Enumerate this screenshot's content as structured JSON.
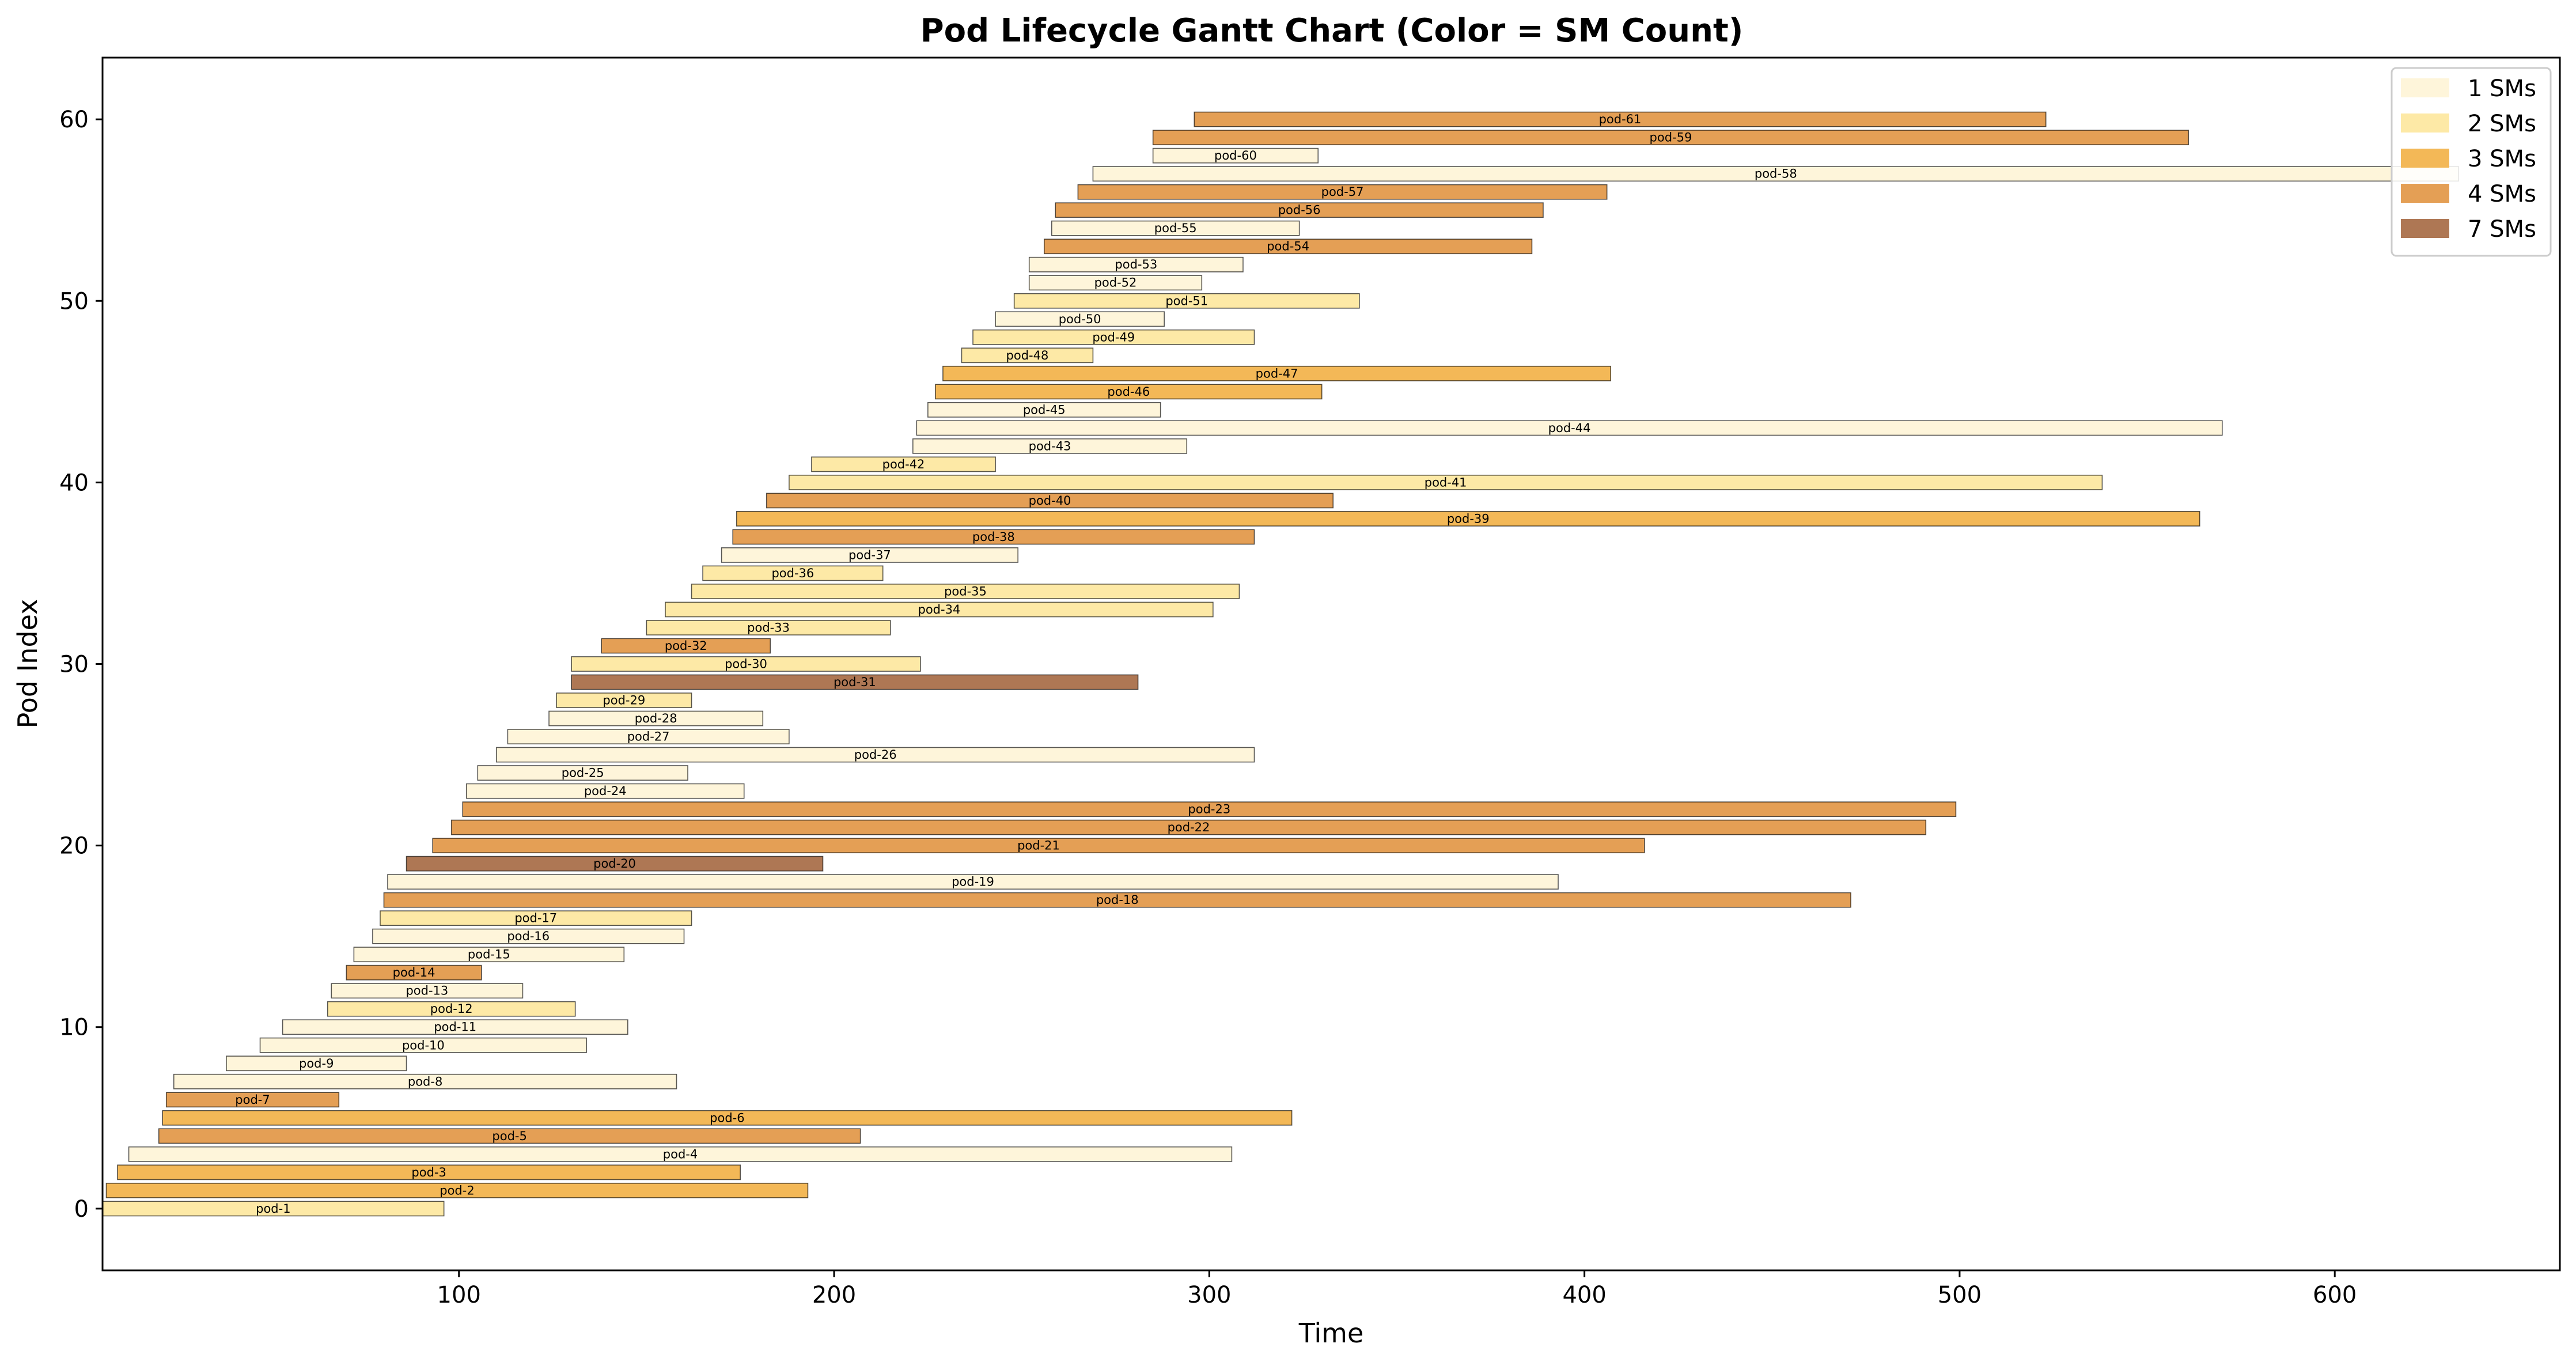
{
  "chart_data": {
    "type": "gantt",
    "title": "Pod Lifecycle Gantt Chart (Color = SM Count)",
    "xlabel": "Time",
    "ylabel": "Pod Index",
    "xlim": [
      5,
      660
    ],
    "ylim": [
      -3.4,
      63.4
    ],
    "xticks": [
      100,
      200,
      300,
      400,
      500,
      600
    ],
    "yticks": [
      0,
      10,
      20,
      30,
      40,
      50,
      60
    ],
    "grid": false,
    "legend_position": "top-right",
    "legend": [
      {
        "label": "1 SMs",
        "sm": 1,
        "color": "#fef5da"
      },
      {
        "label": "2 SMs",
        "sm": 2,
        "color": "#fde9a6"
      },
      {
        "label": "3 SMs",
        "sm": 3,
        "color": "#f3b857"
      },
      {
        "label": "4 SMs",
        "sm": 4,
        "color": "#e49f55"
      },
      {
        "label": "7 SMs",
        "sm": 7,
        "color": "#ae7754"
      }
    ],
    "pods": [
      {
        "name": "pod-1",
        "index": 0,
        "start": 5,
        "end": 96,
        "sm": 2
      },
      {
        "name": "pod-2",
        "index": 1,
        "start": 6,
        "end": 193,
        "sm": 3
      },
      {
        "name": "pod-3",
        "index": 2,
        "start": 9,
        "end": 175,
        "sm": 3
      },
      {
        "name": "pod-4",
        "index": 3,
        "start": 12,
        "end": 306,
        "sm": 1
      },
      {
        "name": "pod-5",
        "index": 4,
        "start": 20,
        "end": 207,
        "sm": 4
      },
      {
        "name": "pod-6",
        "index": 5,
        "start": 21,
        "end": 322,
        "sm": 3
      },
      {
        "name": "pod-7",
        "index": 6,
        "start": 22,
        "end": 68,
        "sm": 4
      },
      {
        "name": "pod-8",
        "index": 7,
        "start": 24,
        "end": 158,
        "sm": 1
      },
      {
        "name": "pod-9",
        "index": 8,
        "start": 38,
        "end": 86,
        "sm": 1
      },
      {
        "name": "pod-10",
        "index": 9,
        "start": 47,
        "end": 134,
        "sm": 1
      },
      {
        "name": "pod-11",
        "index": 10,
        "start": 53,
        "end": 145,
        "sm": 1
      },
      {
        "name": "pod-12",
        "index": 11,
        "start": 65,
        "end": 131,
        "sm": 2
      },
      {
        "name": "pod-13",
        "index": 12,
        "start": 66,
        "end": 117,
        "sm": 1
      },
      {
        "name": "pod-14",
        "index": 13,
        "start": 70,
        "end": 106,
        "sm": 4
      },
      {
        "name": "pod-15",
        "index": 14,
        "start": 72,
        "end": 144,
        "sm": 1
      },
      {
        "name": "pod-16",
        "index": 15,
        "start": 77,
        "end": 160,
        "sm": 1
      },
      {
        "name": "pod-17",
        "index": 16,
        "start": 79,
        "end": 162,
        "sm": 2
      },
      {
        "name": "pod-18",
        "index": 17,
        "start": 80,
        "end": 471,
        "sm": 4
      },
      {
        "name": "pod-19",
        "index": 18,
        "start": 81,
        "end": 393,
        "sm": 1
      },
      {
        "name": "pod-20",
        "index": 19,
        "start": 86,
        "end": 197,
        "sm": 7
      },
      {
        "name": "pod-21",
        "index": 20,
        "start": 93,
        "end": 416,
        "sm": 4
      },
      {
        "name": "pod-22",
        "index": 21,
        "start": 98,
        "end": 491,
        "sm": 4
      },
      {
        "name": "pod-23",
        "index": 22,
        "start": 101,
        "end": 499,
        "sm": 4
      },
      {
        "name": "pod-24",
        "index": 23,
        "start": 102,
        "end": 176,
        "sm": 1
      },
      {
        "name": "pod-25",
        "index": 24,
        "start": 105,
        "end": 161,
        "sm": 1
      },
      {
        "name": "pod-26",
        "index": 25,
        "start": 110,
        "end": 312,
        "sm": 1
      },
      {
        "name": "pod-27",
        "index": 26,
        "start": 113,
        "end": 188,
        "sm": 1
      },
      {
        "name": "pod-28",
        "index": 27,
        "start": 124,
        "end": 181,
        "sm": 1
      },
      {
        "name": "pod-29",
        "index": 28,
        "start": 126,
        "end": 162,
        "sm": 2
      },
      {
        "name": "pod-31",
        "index": 29,
        "start": 130,
        "end": 281,
        "sm": 7
      },
      {
        "name": "pod-30",
        "index": 30,
        "start": 130,
        "end": 223,
        "sm": 2
      },
      {
        "name": "pod-32",
        "index": 31,
        "start": 138,
        "end": 183,
        "sm": 4
      },
      {
        "name": "pod-33",
        "index": 32,
        "start": 150,
        "end": 215,
        "sm": 2
      },
      {
        "name": "pod-34",
        "index": 33,
        "start": 155,
        "end": 301,
        "sm": 2
      },
      {
        "name": "pod-35",
        "index": 34,
        "start": 162,
        "end": 308,
        "sm": 2
      },
      {
        "name": "pod-36",
        "index": 35,
        "start": 165,
        "end": 213,
        "sm": 2
      },
      {
        "name": "pod-37",
        "index": 36,
        "start": 170,
        "end": 249,
        "sm": 1
      },
      {
        "name": "pod-38",
        "index": 37,
        "start": 173,
        "end": 312,
        "sm": 4
      },
      {
        "name": "pod-39",
        "index": 38,
        "start": 174,
        "end": 564,
        "sm": 3
      },
      {
        "name": "pod-40",
        "index": 39,
        "start": 182,
        "end": 333,
        "sm": 4
      },
      {
        "name": "pod-41",
        "index": 40,
        "start": 188,
        "end": 538,
        "sm": 2
      },
      {
        "name": "pod-42",
        "index": 41,
        "start": 194,
        "end": 243,
        "sm": 2
      },
      {
        "name": "pod-43",
        "index": 42,
        "start": 221,
        "end": 294,
        "sm": 1
      },
      {
        "name": "pod-44",
        "index": 43,
        "start": 222,
        "end": 570,
        "sm": 1
      },
      {
        "name": "pod-45",
        "index": 44,
        "start": 225,
        "end": 287,
        "sm": 1
      },
      {
        "name": "pod-46",
        "index": 45,
        "start": 227,
        "end": 330,
        "sm": 3
      },
      {
        "name": "pod-47",
        "index": 46,
        "start": 229,
        "end": 407,
        "sm": 3
      },
      {
        "name": "pod-48",
        "index": 47,
        "start": 234,
        "end": 269,
        "sm": 2
      },
      {
        "name": "pod-49",
        "index": 48,
        "start": 237,
        "end": 312,
        "sm": 2
      },
      {
        "name": "pod-50",
        "index": 49,
        "start": 243,
        "end": 288,
        "sm": 1
      },
      {
        "name": "pod-51",
        "index": 50,
        "start": 248,
        "end": 340,
        "sm": 2
      },
      {
        "name": "pod-52",
        "index": 51,
        "start": 252,
        "end": 298,
        "sm": 1
      },
      {
        "name": "pod-53",
        "index": 52,
        "start": 252,
        "end": 309,
        "sm": 1
      },
      {
        "name": "pod-54",
        "index": 53,
        "start": 256,
        "end": 386,
        "sm": 4
      },
      {
        "name": "pod-55",
        "index": 54,
        "start": 258,
        "end": 324,
        "sm": 1
      },
      {
        "name": "pod-56",
        "index": 55,
        "start": 259,
        "end": 389,
        "sm": 4
      },
      {
        "name": "pod-57",
        "index": 56,
        "start": 265,
        "end": 406,
        "sm": 4
      },
      {
        "name": "pod-58",
        "index": 57,
        "start": 269,
        "end": 633,
        "sm": 1
      },
      {
        "name": "pod-60",
        "index": 58,
        "start": 285,
        "end": 329,
        "sm": 1
      },
      {
        "name": "pod-59",
        "index": 59,
        "start": 285,
        "end": 561,
        "sm": 4
      },
      {
        "name": "pod-61",
        "index": 60,
        "start": 296,
        "end": 523,
        "sm": 4
      }
    ]
  }
}
